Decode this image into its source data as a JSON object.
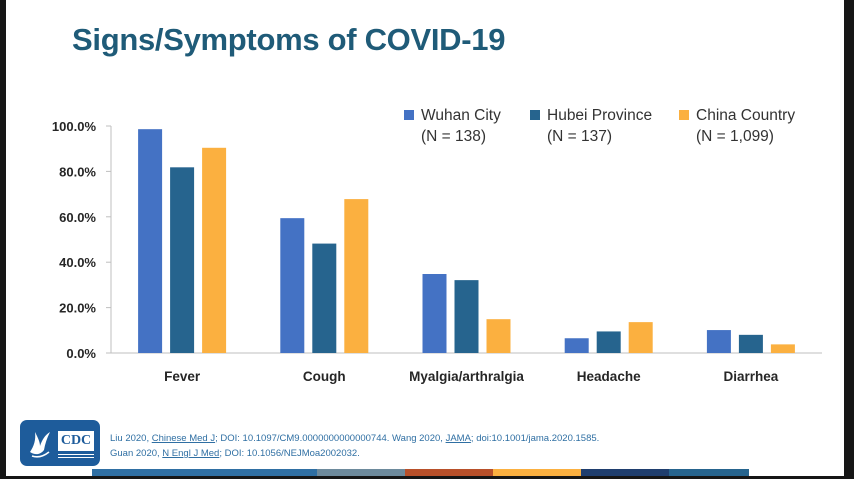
{
  "title": "Signs/Symptoms of COVID-19",
  "legend": [
    {
      "label": "Wuhan City",
      "sub": "(N = 138)",
      "color": "#4472c4"
    },
    {
      "label": "Hubei Province",
      "sub": "(N = 137)",
      "color": "#26648e"
    },
    {
      "label": "China Country",
      "sub": "(N = 1,099)",
      "color": "#fbb040"
    }
  ],
  "chart_data": {
    "type": "bar",
    "categories": [
      "Fever",
      "Cough",
      "Myalgia/arthralgia",
      "Headache",
      "Diarrhea"
    ],
    "series": [
      {
        "name": "Wuhan City (N = 138)",
        "color": "#4472c4",
        "values": [
          98.6,
          59.4,
          34.8,
          6.5,
          10.1
        ]
      },
      {
        "name": "Hubei Province (N = 137)",
        "color": "#26648e",
        "values": [
          81.8,
          48.2,
          32.1,
          9.5,
          8.0
        ]
      },
      {
        "name": "China Country (N = 1,099)",
        "color": "#fbb040",
        "values": [
          90.4,
          67.8,
          14.9,
          13.6,
          3.8
        ]
      }
    ],
    "ytick_labels": [
      "0.0%",
      "20.0%",
      "40.0%",
      "60.0%",
      "80.0%",
      "100.0%"
    ],
    "ylim": [
      0,
      100
    ],
    "grid": false,
    "legend_position": "top-right"
  },
  "citations": {
    "line1_a": "Liu 2020, ",
    "line1_journal": "Chinese Med J",
    "line1_b": "; DOI: 10.1097/CM9.0000000000000744. Wang 2020, ",
    "line1_journal2": "JAMA",
    "line1_c": "; doi:10.1001/jama.2020.1585.",
    "line2_a": "Guan 2020, ",
    "line2_journal": "N Engl J Med",
    "line2_b": "; DOI: 10.1056/NEJMoa2002032."
  },
  "logo": {
    "text": "CDC"
  },
  "strip_colors": [
    "#2f6fa3",
    "#2f6fa3",
    "#6d8a9c",
    "#b8502a",
    "#fbb040",
    "#1f3e6e",
    "#26648e"
  ]
}
